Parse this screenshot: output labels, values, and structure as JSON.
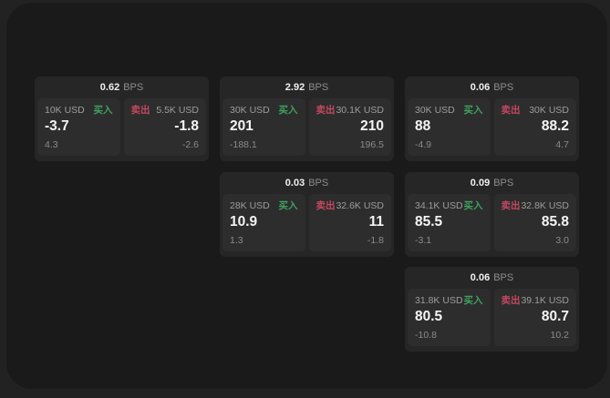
{
  "labels": {
    "buy": "买入",
    "sell": "卖出",
    "bps_suffix": "BPS"
  },
  "colors": {
    "buy_accent": "#3fa15f",
    "sell_accent": "#c4485f",
    "panel_bg": "#1a1a1a",
    "card_bg": "#262626",
    "cell_bg": "#2d2d2d",
    "value_text": "#f5f5f5",
    "muted_text": "#9d9d9d"
  },
  "cards": [
    {
      "bps": "0.62",
      "buy": {
        "amount": "10K USD",
        "value": "-3.7",
        "sub": "4.3"
      },
      "sell": {
        "amount": "5.5K USD",
        "value": "-1.8",
        "sub": "-2.6"
      }
    },
    {
      "bps": "2.92",
      "buy": {
        "amount": "30K USD",
        "value": "201",
        "sub": "-188.1"
      },
      "sell": {
        "amount": "30.1K USD",
        "value": "210",
        "sub": "196.5"
      }
    },
    {
      "bps": "0.06",
      "buy": {
        "amount": "30K USD",
        "value": "88",
        "sub": "-4.9"
      },
      "sell": {
        "amount": "30K USD",
        "value": "88.2",
        "sub": "4.7"
      }
    },
    {
      "bps": "0.03",
      "buy": {
        "amount": "28K USD",
        "value": "10.9",
        "sub": "1.3"
      },
      "sell": {
        "amount": "32.6K USD",
        "value": "11",
        "sub": "-1.8"
      }
    },
    {
      "bps": "0.09",
      "buy": {
        "amount": "34.1K USD",
        "value": "85.5",
        "sub": "-3.1"
      },
      "sell": {
        "amount": "32.8K USD",
        "value": "85.8",
        "sub": "3.0"
      }
    },
    {
      "bps": "0.06",
      "buy": {
        "amount": "31.8K USD",
        "value": "80.5",
        "sub": "-10.8"
      },
      "sell": {
        "amount": "39.1K USD",
        "value": "80.7",
        "sub": "10.2"
      }
    }
  ]
}
